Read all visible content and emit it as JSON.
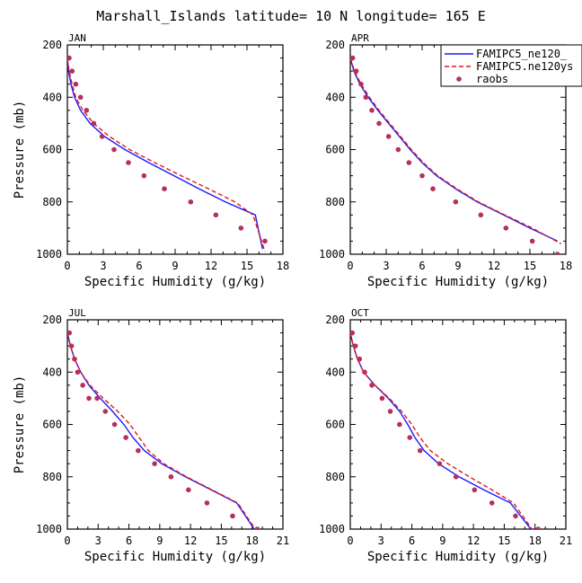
{
  "title": "Marshall_Islands  latitude= 10 N longitude= 165 E",
  "colors": {
    "famipc5_ne120_blue": "#1a1aff",
    "famipc5_ne120_red": "#e01a1a",
    "raobs": "#b5305c"
  },
  "legend": {
    "entries": [
      {
        "label": "FAMIPC5_ne120_",
        "style": "solid",
        "color": "#1a1aff"
      },
      {
        "label": "FAMIPC5.ne120ys",
        "style": "dashed",
        "color": "#e01a1a"
      },
      {
        "label": "raobs",
        "style": "dot",
        "color": "#b5305c"
      }
    ]
  },
  "chart_data": [
    {
      "type": "line",
      "panel": "JAN",
      "xlabel": "Specific Humidity (g/kg)",
      "ylabel": "Pressure (mb)",
      "xlim": [
        0,
        18
      ],
      "ylim": [
        1000,
        200
      ],
      "xticks": [
        0,
        3,
        6,
        9,
        12,
        15,
        18
      ],
      "yticks": [
        200,
        400,
        600,
        800,
        1000
      ],
      "series": [
        {
          "name": "FAMIPC5_ne120_",
          "style": "solid",
          "color": "#1a1aff",
          "x": [
            0.0,
            0.1,
            0.3,
            0.6,
            1.1,
            1.9,
            3.1,
            4.8,
            6.8,
            8.9,
            11.0,
            13.2,
            15.7,
            16.3
          ],
          "y": [
            250,
            300,
            350,
            400,
            450,
            500,
            550,
            600,
            650,
            700,
            750,
            800,
            850,
            980
          ]
        },
        {
          "name": "FAMIPC5.ne120ys",
          "style": "dashed",
          "color": "#e01a1a",
          "x": [
            0.0,
            0.15,
            0.4,
            0.7,
            1.3,
            2.2,
            3.5,
            5.2,
            7.3,
            9.5,
            11.8,
            14.0,
            15.5,
            16.5
          ],
          "y": [
            250,
            300,
            350,
            400,
            450,
            500,
            550,
            600,
            650,
            700,
            750,
            800,
            850,
            990
          ]
        },
        {
          "name": "raobs",
          "style": "dot",
          "color": "#b5305c",
          "x": [
            0.15,
            0.4,
            0.7,
            1.1,
            1.6,
            2.2,
            2.9,
            3.9,
            5.1,
            6.4,
            8.1,
            10.3,
            12.4,
            14.5,
            16.5
          ],
          "y": [
            250,
            300,
            350,
            400,
            450,
            500,
            550,
            600,
            650,
            700,
            750,
            800,
            850,
            900,
            950
          ]
        }
      ]
    },
    {
      "type": "line",
      "panel": "APR",
      "xlabel": "Specific Humidity (g/kg)",
      "ylabel": "",
      "xlim": [
        0,
        18
      ],
      "ylim": [
        1000,
        200
      ],
      "xticks": [
        0,
        3,
        6,
        9,
        12,
        15,
        18
      ],
      "yticks": [
        200,
        400,
        600,
        800,
        1000
      ],
      "series": [
        {
          "name": "FAMIPC5_ne120_",
          "style": "solid",
          "color": "#1a1aff",
          "x": [
            0.0,
            0.3,
            0.8,
            1.5,
            2.3,
            3.2,
            4.1,
            5.0,
            6.0,
            7.2,
            8.8,
            10.6,
            12.8,
            15.0,
            17.3
          ],
          "y": [
            250,
            300,
            350,
            400,
            450,
            500,
            550,
            600,
            650,
            700,
            750,
            800,
            850,
            900,
            950
          ]
        },
        {
          "name": "FAMIPC5.ne120ys",
          "style": "dashed",
          "color": "#e01a1a",
          "x": [
            0.0,
            0.35,
            0.9,
            1.6,
            2.4,
            3.3,
            4.2,
            5.1,
            6.1,
            7.3,
            8.9,
            10.7,
            12.9,
            15.2,
            17.6
          ],
          "y": [
            250,
            300,
            350,
            400,
            450,
            500,
            550,
            600,
            650,
            700,
            750,
            800,
            850,
            900,
            960
          ]
        },
        {
          "name": "raobs",
          "style": "dot",
          "color": "#b5305c",
          "x": [
            0.2,
            0.5,
            0.9,
            1.3,
            1.8,
            2.4,
            3.2,
            4.0,
            4.9,
            6.0,
            6.9,
            8.8,
            10.9,
            13.0,
            15.2,
            17.3
          ],
          "y": [
            250,
            300,
            350,
            400,
            450,
            500,
            550,
            600,
            650,
            700,
            750,
            800,
            850,
            900,
            950,
            1000
          ]
        }
      ]
    },
    {
      "type": "line",
      "panel": "JUL",
      "xlabel": "Specific Humidity (g/kg)",
      "ylabel": "Pressure (mb)",
      "xlim": [
        0,
        21
      ],
      "ylim": [
        1000,
        200
      ],
      "xticks": [
        0,
        3,
        6,
        9,
        12,
        15,
        18,
        21
      ],
      "yticks": [
        200,
        400,
        600,
        800,
        1000
      ],
      "series": [
        {
          "name": "FAMIPC5_ne120_",
          "style": "solid",
          "color": "#1a1aff",
          "x": [
            0.0,
            0.3,
            0.7,
            1.3,
            2.1,
            3.2,
            4.4,
            5.5,
            6.4,
            7.5,
            9.2,
            11.5,
            14.0,
            16.5,
            18.2
          ],
          "y": [
            250,
            300,
            350,
            400,
            450,
            500,
            550,
            600,
            650,
            700,
            750,
            800,
            850,
            900,
            1000
          ]
        },
        {
          "name": "FAMIPC5.ne120ys",
          "style": "dashed",
          "color": "#e01a1a",
          "x": [
            0.0,
            0.3,
            0.7,
            1.3,
            2.2,
            3.5,
            4.9,
            6.1,
            7.0,
            7.9,
            9.4,
            11.6,
            14.1,
            16.6,
            18.3
          ],
          "y": [
            250,
            300,
            350,
            400,
            450,
            500,
            550,
            600,
            650,
            700,
            750,
            800,
            850,
            900,
            1000
          ]
        },
        {
          "name": "raobs",
          "style": "dot",
          "color": "#b5305c",
          "x": [
            0.2,
            0.4,
            0.7,
            1.0,
            1.5,
            2.1,
            2.9,
            3.7,
            4.6,
            5.7,
            6.9,
            8.5,
            10.1,
            11.8,
            13.6,
            16.1,
            18.5
          ],
          "y": [
            250,
            300,
            350,
            400,
            450,
            500,
            500,
            550,
            600,
            650,
            700,
            750,
            800,
            850,
            900,
            950,
            1000
          ]
        }
      ]
    },
    {
      "type": "line",
      "panel": "OCT",
      "xlabel": "Specific Humidity (g/kg)",
      "ylabel": "",
      "xlim": [
        0,
        21
      ],
      "ylim": [
        1000,
        200
      ],
      "xticks": [
        0,
        3,
        6,
        9,
        12,
        15,
        18,
        21
      ],
      "yticks": [
        200,
        400,
        600,
        800,
        1000
      ],
      "series": [
        {
          "name": "FAMIPC5_ne120_",
          "style": "solid",
          "color": "#1a1aff",
          "x": [
            0.0,
            0.3,
            0.7,
            1.3,
            2.4,
            3.7,
            4.8,
            5.6,
            6.3,
            7.2,
            8.6,
            10.6,
            13.0,
            15.6,
            17.6
          ],
          "y": [
            250,
            300,
            350,
            400,
            450,
            500,
            550,
            600,
            650,
            700,
            750,
            800,
            850,
            900,
            1000
          ]
        },
        {
          "name": "FAMIPC5.ne120ys",
          "style": "dashed",
          "color": "#e01a1a",
          "x": [
            0.0,
            0.3,
            0.7,
            1.3,
            2.4,
            3.8,
            5.0,
            6.0,
            6.8,
            7.8,
            9.5,
            11.6,
            13.8,
            15.9,
            17.7
          ],
          "y": [
            250,
            300,
            350,
            400,
            450,
            500,
            550,
            600,
            650,
            700,
            750,
            800,
            850,
            900,
            1000
          ]
        },
        {
          "name": "raobs",
          "style": "dot",
          "color": "#b5305c",
          "x": [
            0.2,
            0.5,
            0.9,
            1.4,
            2.1,
            3.1,
            3.9,
            4.8,
            5.8,
            6.8,
            8.7,
            10.3,
            12.1,
            13.8,
            16.1,
            18.3
          ],
          "y": [
            250,
            300,
            350,
            400,
            450,
            500,
            550,
            600,
            650,
            700,
            750,
            800,
            850,
            900,
            950,
            1000
          ]
        }
      ]
    }
  ]
}
